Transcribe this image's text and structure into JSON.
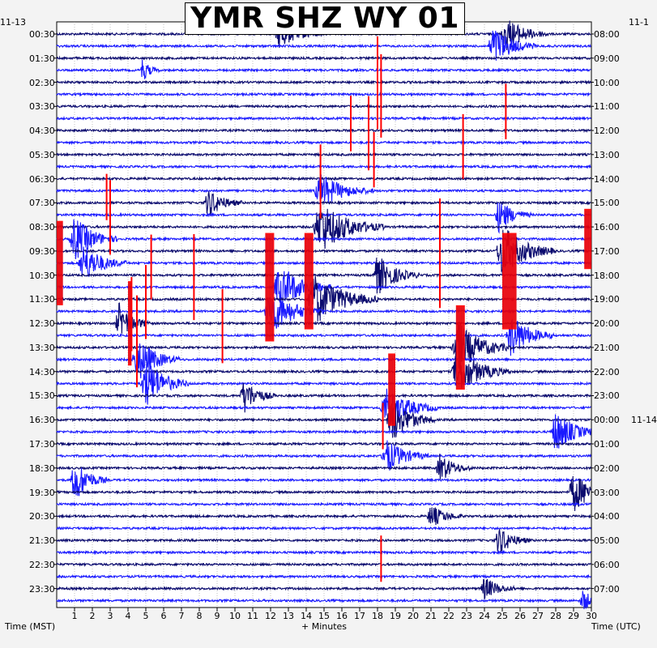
{
  "chart_data": {
    "type": "helicorder",
    "title": "YMR SHZ WY 01",
    "left_date": "11-13",
    "right_dates": [
      "11-1",
      "11-14"
    ],
    "xlabel": "+ Minutes",
    "left_axis_label": "Time (MST)",
    "right_axis_label": "Time (UTC)",
    "x_ticks": [
      "1",
      "2",
      "3",
      "4",
      "5",
      "6",
      "7",
      "8",
      "9",
      "10",
      "11",
      "12",
      "13",
      "14",
      "15",
      "16",
      "17",
      "18",
      "19",
      "20",
      "21",
      "22",
      "23",
      "24",
      "25",
      "26",
      "27",
      "28",
      "29",
      "30"
    ],
    "left_times": [
      "00:30",
      "01:30",
      "02:30",
      "03:30",
      "04:30",
      "05:30",
      "06:30",
      "07:30",
      "08:30",
      "09:30",
      "10:30",
      "11:30",
      "12:30",
      "13:30",
      "14:30",
      "15:30",
      "16:30",
      "17:30",
      "18:30",
      "19:30",
      "20:30",
      "21:30",
      "22:30",
      "23:30"
    ],
    "right_times": [
      "08:00",
      "09:00",
      "10:00",
      "11:00",
      "12:00",
      "13:00",
      "14:00",
      "15:00",
      "16:00",
      "17:00",
      "18:00",
      "19:00",
      "20:00",
      "21:00",
      "22:00",
      "23:00",
      "00:00",
      "01:00",
      "02:00",
      "03:00",
      "04:00",
      "05:00",
      "06:00",
      "07:00"
    ],
    "xlim": [
      0,
      30
    ],
    "traces_per_hour": 2,
    "trace_count": 48,
    "colors": [
      "#0a0a6e",
      "#1a1aff",
      "#ff0000"
    ],
    "clipped_color": "#ff0000",
    "events": [
      {
        "trace": 0,
        "minute": 12.5,
        "amp": 1.0,
        "dur": 2.0
      },
      {
        "trace": 0,
        "minute": 25.2,
        "amp": 1.2,
        "dur": 2.0
      },
      {
        "trace": 1,
        "minute": 24.5,
        "amp": 1.4,
        "dur": 2.0
      },
      {
        "trace": 3,
        "minute": 4.8,
        "amp": 0.8,
        "dur": 0.8
      },
      {
        "trace": 13,
        "minute": 14.8,
        "amp": 1.2,
        "dur": 2.5
      },
      {
        "trace": 14,
        "minute": 8.5,
        "amp": 1.0,
        "dur": 1.6
      },
      {
        "trace": 15,
        "minute": 24.8,
        "amp": 1.2,
        "dur": 1.5
      },
      {
        "trace": 16,
        "minute": 14.8,
        "amp": 1.8,
        "dur": 3.0
      },
      {
        "trace": 17,
        "minute": 1.0,
        "amp": 1.6,
        "dur": 2.0
      },
      {
        "trace": 18,
        "minute": 25.0,
        "amp": 1.8,
        "dur": 2.5
      },
      {
        "trace": 19,
        "minute": 1.5,
        "amp": 1.4,
        "dur": 2.0
      },
      {
        "trace": 20,
        "minute": 18.0,
        "amp": 1.4,
        "dur": 2.0
      },
      {
        "trace": 21,
        "minute": 12.5,
        "amp": 1.6,
        "dur": 2.5
      },
      {
        "trace": 22,
        "minute": 14.5,
        "amp": 1.8,
        "dur": 3.0
      },
      {
        "trace": 23,
        "minute": 12.0,
        "amp": 1.6,
        "dur": 2.5
      },
      {
        "trace": 24,
        "minute": 3.5,
        "amp": 1.4,
        "dur": 1.5
      },
      {
        "trace": 25,
        "minute": 25.5,
        "amp": 1.5,
        "dur": 2.0
      },
      {
        "trace": 26,
        "minute": 22.5,
        "amp": 1.8,
        "dur": 2.5
      },
      {
        "trace": 27,
        "minute": 4.5,
        "amp": 1.6,
        "dur": 2.0
      },
      {
        "trace": 28,
        "minute": 22.5,
        "amp": 1.6,
        "dur": 2.5
      },
      {
        "trace": 29,
        "minute": 5.0,
        "amp": 1.8,
        "dur": 2.0
      },
      {
        "trace": 30,
        "minute": 10.5,
        "amp": 1.2,
        "dur": 1.5
      },
      {
        "trace": 31,
        "minute": 18.5,
        "amp": 1.4,
        "dur": 2.5
      },
      {
        "trace": 32,
        "minute": 18.8,
        "amp": 1.6,
        "dur": 2.0
      },
      {
        "trace": 33,
        "minute": 28.0,
        "amp": 1.5,
        "dur": 2.0
      },
      {
        "trace": 35,
        "minute": 18.5,
        "amp": 1.2,
        "dur": 2.0
      },
      {
        "trace": 36,
        "minute": 21.5,
        "amp": 1.0,
        "dur": 1.5
      },
      {
        "trace": 37,
        "minute": 1.0,
        "amp": 1.6,
        "dur": 1.5
      },
      {
        "trace": 38,
        "minute": 29.0,
        "amp": 1.4,
        "dur": 2.0
      },
      {
        "trace": 40,
        "minute": 21.0,
        "amp": 0.8,
        "dur": 1.5
      },
      {
        "trace": 42,
        "minute": 24.8,
        "amp": 1.0,
        "dur": 1.5
      },
      {
        "trace": 46,
        "minute": 24.0,
        "amp": 0.8,
        "dur": 1.5
      },
      {
        "trace": 47,
        "minute": 29.5,
        "amp": 0.8,
        "dur": 1.0
      }
    ],
    "spikes": [
      {
        "trace": 5,
        "minute": 18.0,
        "amp": 2.0
      },
      {
        "trace": 6,
        "minute": 18.2,
        "amp": 1.8
      },
      {
        "trace": 7,
        "minute": 25.2,
        "amp": 1.2
      },
      {
        "trace": 8,
        "minute": 16.5,
        "amp": 1.2
      },
      {
        "trace": 9,
        "minute": 17.5,
        "amp": 1.6
      },
      {
        "trace": 10,
        "minute": 22.8,
        "amp": 1.4
      },
      {
        "trace": 11,
        "minute": 17.8,
        "amp": 1.2
      },
      {
        "trace": 13,
        "minute": 14.8,
        "amp": 1.6
      },
      {
        "trace": 14,
        "minute": 2.8,
        "amp": 1.0
      },
      {
        "trace": 15,
        "minute": 3.0,
        "amp": 1.2
      },
      {
        "trace": 16,
        "minute": 3.0,
        "amp": 1.6
      },
      {
        "trace": 17,
        "minute": 21.5,
        "amp": 1.4
      },
      {
        "trace": 19,
        "minute": 7.7,
        "amp": 1.0
      },
      {
        "trace": 20,
        "minute": 5.3,
        "amp": 1.4
      },
      {
        "trace": 21,
        "minute": 21.5,
        "amp": 1.2
      },
      {
        "trace": 22,
        "minute": 7.7,
        "amp": 1.2
      },
      {
        "trace": 23,
        "minute": 5.0,
        "amp": 1.6
      },
      {
        "trace": 24,
        "minute": 4.2,
        "amp": 1.6
      },
      {
        "trace": 25,
        "minute": 9.3,
        "amp": 1.6
      },
      {
        "trace": 26,
        "minute": 4.5,
        "amp": 1.8
      },
      {
        "trace": 27,
        "minute": 4.5,
        "amp": 1.6
      },
      {
        "trace": 33,
        "minute": 18.3,
        "amp": 1.0
      },
      {
        "trace": 44,
        "minute": 18.2,
        "amp": 1.0
      }
    ],
    "clipped_blocks": [
      {
        "trace_start": 16,
        "trace_end": 22,
        "minute_start": 0.0,
        "minute_end": 0.35
      },
      {
        "trace_start": 15,
        "trace_end": 19,
        "minute_start": 29.6,
        "minute_end": 30.0
      },
      {
        "trace_start": 17,
        "trace_end": 25,
        "minute_start": 11.7,
        "minute_end": 12.2
      },
      {
        "trace_start": 17,
        "trace_end": 24,
        "minute_start": 13.9,
        "minute_end": 14.4
      },
      {
        "trace_start": 17,
        "trace_end": 24,
        "minute_start": 25.0,
        "minute_end": 25.8
      },
      {
        "trace_start": 23,
        "trace_end": 29,
        "minute_start": 22.4,
        "minute_end": 22.9
      },
      {
        "trace_start": 27,
        "trace_end": 32,
        "minute_start": 18.6,
        "minute_end": 19.0
      },
      {
        "trace_start": 21,
        "trace_end": 27,
        "minute_start": 4.0,
        "minute_end": 4.2
      }
    ],
    "grid": true
  }
}
